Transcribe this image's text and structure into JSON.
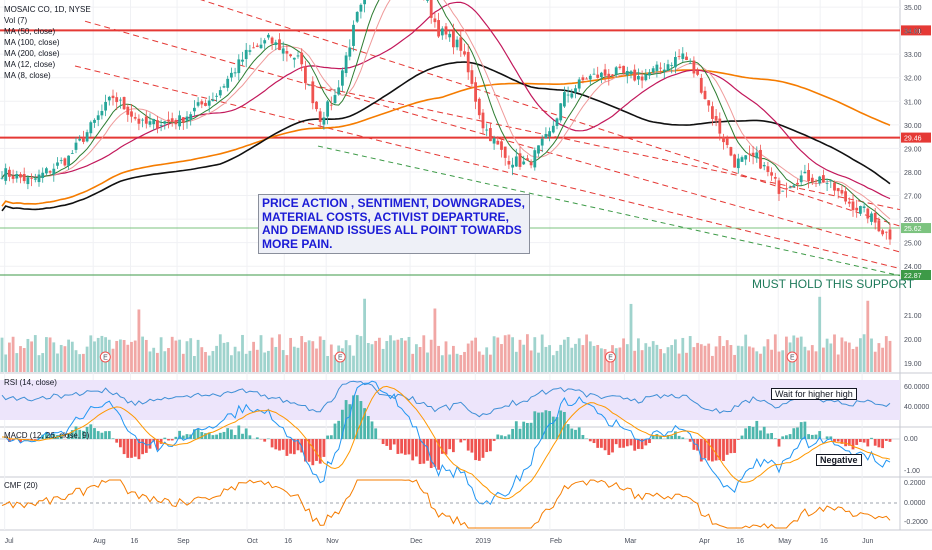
{
  "chart_data": {
    "type": "candlestick",
    "symbol": "MOSAIC CO, 1D, NYSE",
    "legend": {
      "vol": "Vol (7)",
      "ma50": "MA (50, close)",
      "ma100": "MA (100, close)",
      "ma200": "MA (200, close)",
      "ma12": "MA (12, close)",
      "ma8": "MA (8, close)"
    },
    "ma_colors": {
      "ma50": "#c2185b",
      "ma100": "#111111",
      "ma200": "#f57c00",
      "ma12": "#ef9a9a",
      "ma8": "#2e7d32"
    },
    "price_axis": {
      "ylim": [
        23.5,
        35.3
      ],
      "ticks": [
        "35.00",
        "34.00",
        "33.00",
        "32.00",
        "31.00",
        "30.00",
        "29.00",
        "28.00",
        "27.00",
        "26.00",
        "25.00",
        "24.00"
      ],
      "tick_values": [
        35,
        34,
        33,
        32,
        31,
        30,
        29,
        28,
        27,
        26,
        25,
        24
      ]
    },
    "x_axis": {
      "labels": [
        "Jul",
        "Aug",
        "16",
        "Sep",
        "Oct",
        "16",
        "Nov",
        "Dec",
        "2019",
        "Feb",
        "Mar",
        "Apr",
        "16",
        "May",
        "16",
        "Jun"
      ],
      "positions": [
        0.005,
        0.1,
        0.14,
        0.19,
        0.265,
        0.305,
        0.35,
        0.44,
        0.51,
        0.59,
        0.67,
        0.75,
        0.79,
        0.835,
        0.88,
        0.925
      ]
    },
    "horizontal_levels": [
      {
        "value": 34.01,
        "label": "34.01",
        "color": "#e53935"
      },
      {
        "value": 29.46,
        "label": "29.46",
        "color": "#e53935"
      },
      {
        "value": 25.62,
        "label": "25.62",
        "color": "#7cc37f"
      },
      {
        "value": 22.87,
        "label": "22.87",
        "color": "#3d9a47"
      }
    ],
    "price_series": {
      "start_close": 28.0,
      "knots": [
        [
          0,
          28.0
        ],
        [
          8,
          27.6
        ],
        [
          18,
          28.6
        ],
        [
          30,
          31.2
        ],
        [
          38,
          30.0
        ],
        [
          48,
          30.2
        ],
        [
          58,
          31.3
        ],
        [
          66,
          33.0
        ],
        [
          72,
          33.6
        ],
        [
          80,
          32.8
        ],
        [
          86,
          30.3
        ],
        [
          90,
          31.2
        ],
        [
          96,
          34.6
        ],
        [
          100,
          35.8
        ],
        [
          106,
          36.4
        ],
        [
          112,
          36.2
        ],
        [
          118,
          34.0
        ],
        [
          124,
          33.3
        ],
        [
          130,
          30.0
        ],
        [
          136,
          28.6
        ],
        [
          142,
          28.3
        ],
        [
          148,
          29.6
        ],
        [
          152,
          31.2
        ],
        [
          158,
          32.0
        ],
        [
          166,
          32.2
        ],
        [
          172,
          32.0
        ],
        [
          178,
          32.4
        ],
        [
          184,
          33.0
        ],
        [
          188,
          32.0
        ],
        [
          192,
          30.4
        ],
        [
          198,
          28.4
        ],
        [
          204,
          28.6
        ],
        [
          210,
          27.3
        ],
        [
          216,
          27.8
        ],
        [
          222,
          27.7
        ],
        [
          228,
          26.8
        ],
        [
          234,
          26.2
        ],
        [
          238,
          25.5
        ],
        [
          240,
          25.3
        ]
      ],
      "bars": 241
    },
    "volume_axis": {
      "ticks": [
        "21.00",
        "20.00",
        "19.00"
      ]
    },
    "rsi": {
      "label": "RSI (14, close)",
      "ticks": [
        "60.0000",
        "40.0000"
      ],
      "bg": "#ede5fb"
    },
    "macd": {
      "label": "MACD (12, 26, close, 9)",
      "ticks": [
        "0.00",
        "-1.00"
      ]
    },
    "cmf": {
      "label": "CMF (20)",
      "ticks": [
        "0.2000",
        "0.0000",
        "-0.2000"
      ]
    }
  },
  "annotations": {
    "callout": "PRICE ACTION , SENTIMENT, DOWNGRADES, MATERIAL COSTS, ACTIVIST DEPARTURE, AND DEMAND ISSUES ALL POINT TOWARDS MORE PAIN.",
    "support": "MUST HOLD THIS SUPPORT",
    "rsi_note": "Wait for higher high",
    "macd_note": "Negative"
  }
}
